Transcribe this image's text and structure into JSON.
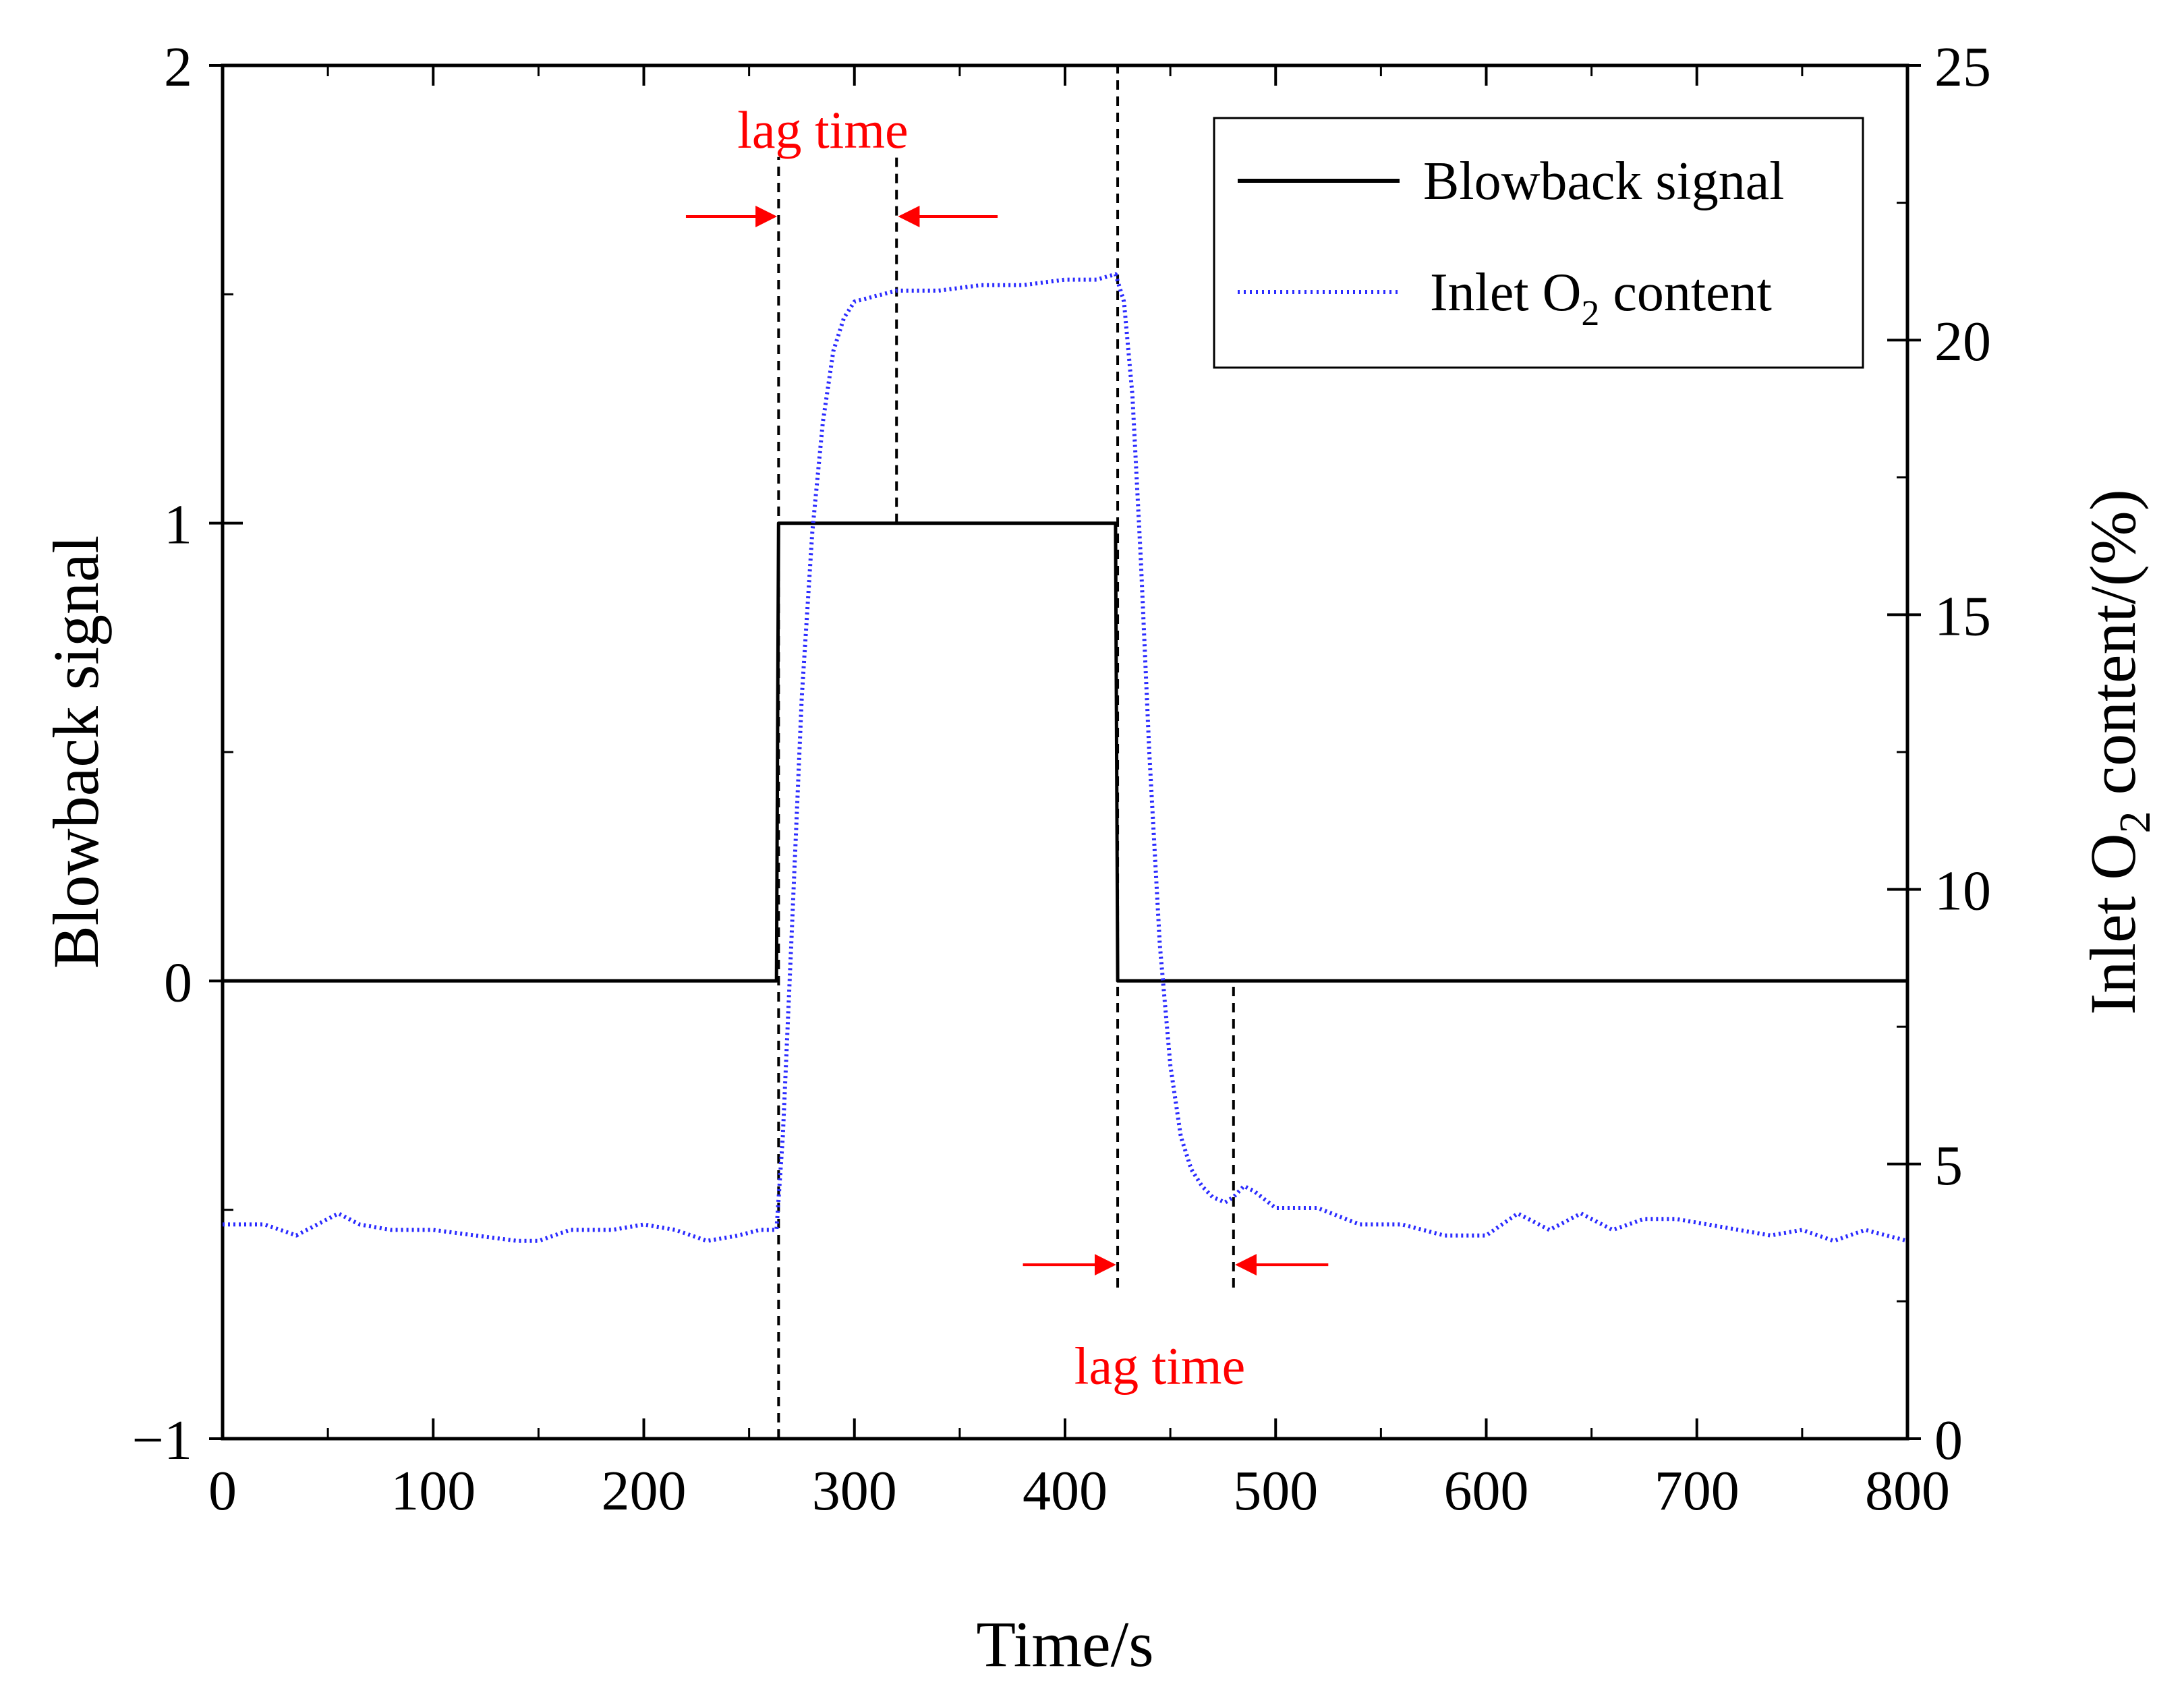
{
  "chart_data": {
    "type": "line",
    "title": "",
    "xlabel": "Time/s",
    "ylabel": "Blowback signal",
    "y2label": {
      "prefix": "Inlet O",
      "sub": "2",
      "suffix": " content/(%)"
    },
    "xlim": [
      0,
      800
    ],
    "ylim": [
      -1,
      2
    ],
    "y2lim": [
      0,
      25
    ],
    "x_ticks": [
      0,
      100,
      200,
      300,
      400,
      500,
      600,
      700,
      800
    ],
    "x_tick_labels": [
      "0",
      "100",
      "200",
      "300",
      "400",
      "500",
      "600",
      "700",
      "800"
    ],
    "y_ticks": [
      -1,
      0,
      1,
      2
    ],
    "y_tick_labels": [
      "−1",
      "0",
      "1",
      "2"
    ],
    "y2_ticks": [
      0,
      5,
      10,
      15,
      20,
      25
    ],
    "y2_tick_labels": [
      "0",
      "5",
      "10",
      "15",
      "20",
      "25"
    ],
    "grid": false,
    "legend_position": "top-right",
    "series": [
      {
        "name": "Blowback signal",
        "legend_label": "Blowback signal",
        "axis": "left",
        "style": "solid",
        "color": "#000000",
        "x": [
          0,
          263,
          264,
          424,
          425,
          800
        ],
        "y": [
          0,
          0,
          1,
          1,
          0,
          0
        ]
      },
      {
        "name": "Inlet O2 content",
        "legend_label": {
          "prefix": "Inlet O",
          "sub": "2",
          "suffix": " content"
        },
        "axis": "right",
        "style": "dotted",
        "color": "#2b2bff",
        "x": [
          0,
          20,
          35,
          45,
          55,
          65,
          80,
          100,
          120,
          140,
          150,
          165,
          185,
          200,
          215,
          230,
          245,
          255,
          263,
          266,
          270,
          275,
          280,
          285,
          290,
          295,
          300,
          310,
          320,
          340,
          360,
          380,
          400,
          415,
          424,
          428,
          432,
          436,
          440,
          445,
          450,
          455,
          460,
          465,
          470,
          476,
          480,
          485,
          490,
          500,
          520,
          540,
          560,
          580,
          600,
          615,
          630,
          645,
          660,
          675,
          690,
          705,
          720,
          735,
          750,
          765,
          780,
          790,
          800
        ],
        "y": [
          3.9,
          3.9,
          3.7,
          3.9,
          4.1,
          3.9,
          3.8,
          3.8,
          3.7,
          3.6,
          3.6,
          3.8,
          3.8,
          3.9,
          3.8,
          3.6,
          3.7,
          3.8,
          3.8,
          5.5,
          9.0,
          13.5,
          16.5,
          18.5,
          19.8,
          20.4,
          20.7,
          20.8,
          20.9,
          20.9,
          21.0,
          21.0,
          21.1,
          21.1,
          21.2,
          20.7,
          19.0,
          16.0,
          12.5,
          9.0,
          6.8,
          5.5,
          4.9,
          4.6,
          4.4,
          4.3,
          4.4,
          4.6,
          4.5,
          4.2,
          4.2,
          3.9,
          3.9,
          3.7,
          3.7,
          4.1,
          3.8,
          4.1,
          3.8,
          4.0,
          4.0,
          3.9,
          3.8,
          3.7,
          3.8,
          3.6,
          3.8,
          3.7,
          3.6
        ]
      }
    ],
    "guides": [
      {
        "x": 264,
        "from": -1.0,
        "to": 1.8
      },
      {
        "x": 320,
        "from": 1.0,
        "to": 1.8
      },
      {
        "x": 425,
        "from": -0.67,
        "to": 2.0
      },
      {
        "x": 480,
        "from": -0.67,
        "to": 0.0
      }
    ],
    "annotations": [
      {
        "text": "lag time",
        "x": 285,
        "y": 1.82,
        "color": "#ff0000",
        "arrows": [
          {
            "from": 220,
            "to": 262,
            "y": 1.67
          },
          {
            "from": 368,
            "to": 322,
            "y": 1.67
          }
        ]
      },
      {
        "text": "lag time",
        "x": 445,
        "y": -0.88,
        "color": "#ff0000",
        "arrows": [
          {
            "from": 380,
            "to": 423,
            "y": -0.62
          },
          {
            "from": 525,
            "to": 482,
            "y": -0.62
          }
        ]
      }
    ]
  }
}
